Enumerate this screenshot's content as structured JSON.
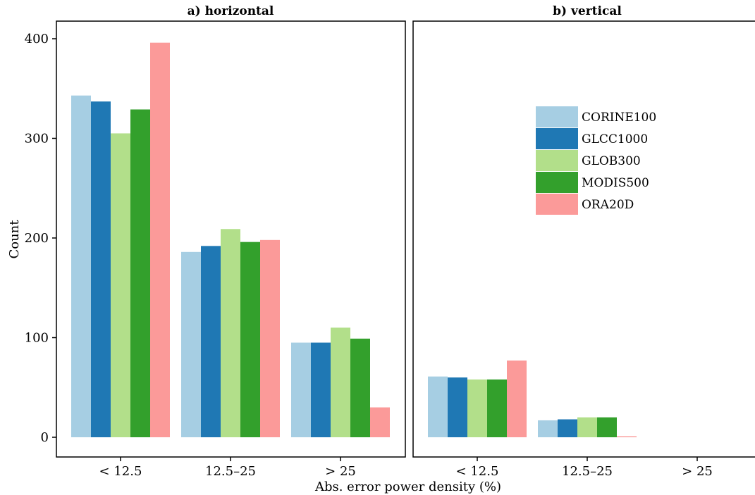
{
  "chart_data": {
    "type": "bar",
    "xlabel": "Abs. error power density (%)",
    "ylabel": "Count",
    "ylim": [
      0,
      400
    ],
    "yticks": [
      0,
      100,
      200,
      300,
      400
    ],
    "categories": [
      "< 12.5",
      "12.5–25",
      "> 25"
    ],
    "legend": {
      "placement": "top-right of panel b"
    },
    "series_meta": [
      {
        "name": "CORINE100",
        "color": "#a6cee3"
      },
      {
        "name": "GLCC1000",
        "color": "#1f78b4"
      },
      {
        "name": "GLOB300",
        "color": "#b2df8a"
      },
      {
        "name": "MODIS500",
        "color": "#33a02c"
      },
      {
        "name": "ORA20D",
        "color": "#fb9a99"
      }
    ],
    "panels": [
      {
        "title": "a) horizontal",
        "series": [
          {
            "name": "CORINE100",
            "values": [
              343,
              186,
              95
            ]
          },
          {
            "name": "GLCC1000",
            "values": [
              337,
              192,
              95
            ]
          },
          {
            "name": "GLOB300",
            "values": [
              305,
              209,
              110
            ]
          },
          {
            "name": "MODIS500",
            "values": [
              329,
              196,
              99
            ]
          },
          {
            "name": "ORA20D",
            "values": [
              396,
              198,
              30
            ]
          }
        ]
      },
      {
        "title": "b) vertical",
        "series": [
          {
            "name": "CORINE100",
            "values": [
              61,
              17,
              0
            ]
          },
          {
            "name": "GLCC1000",
            "values": [
              60,
              18,
              0
            ]
          },
          {
            "name": "GLOB300",
            "values": [
              58,
              20,
              0
            ]
          },
          {
            "name": "MODIS500",
            "values": [
              58,
              20,
              0
            ]
          },
          {
            "name": "ORA20D",
            "values": [
              77,
              1,
              0
            ]
          }
        ]
      }
    ]
  }
}
